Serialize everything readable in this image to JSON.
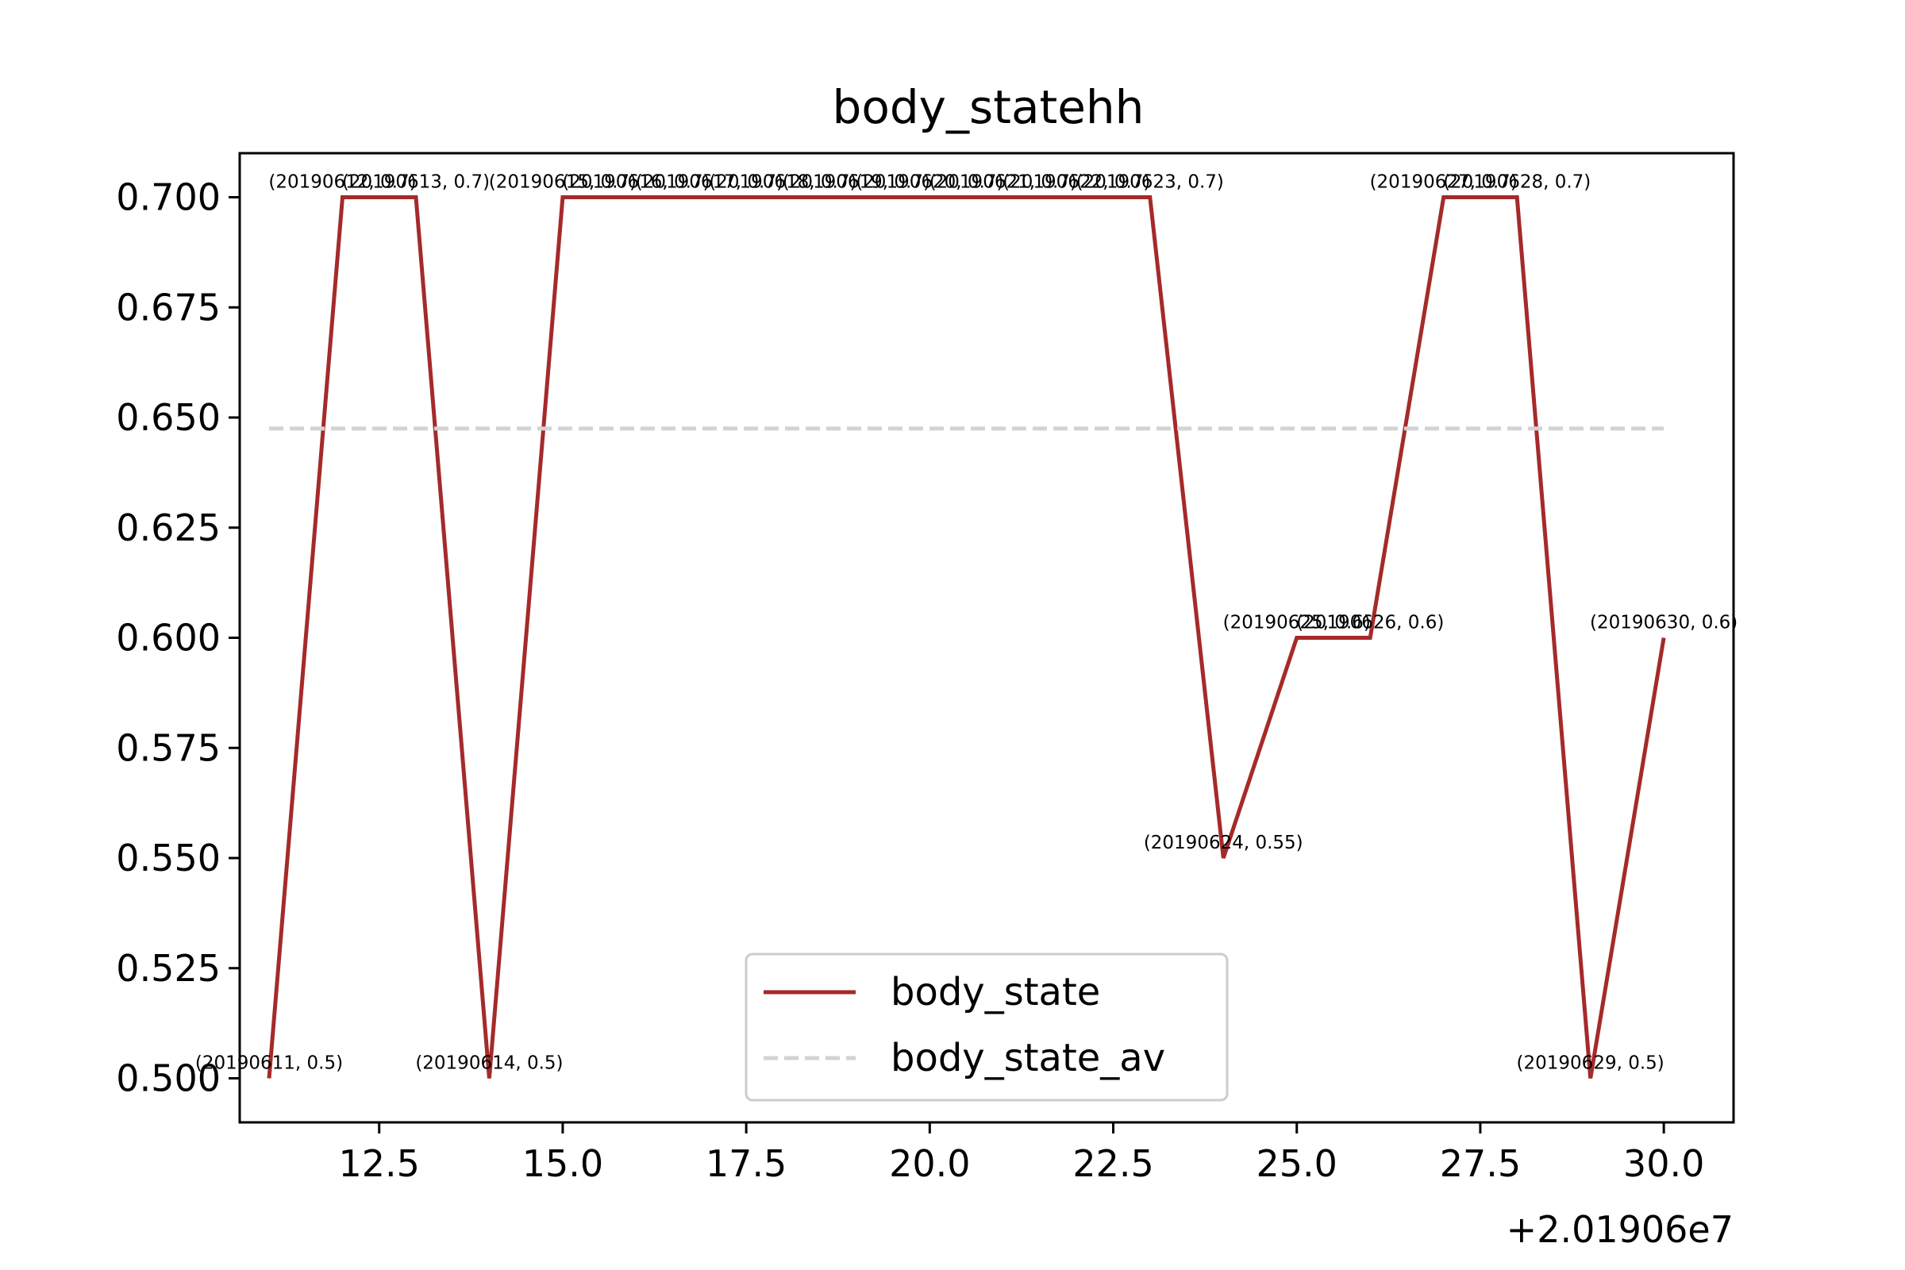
{
  "chart_data": {
    "type": "line",
    "title": "body_statehh",
    "xlabel": "",
    "ylabel": "",
    "x_offset_label": "+2.01906e7",
    "xlim": [
      10.6,
      30.95
    ],
    "ylim": [
      0.49,
      0.71
    ],
    "x_ticks": [
      12.5,
      15.0,
      17.5,
      20.0,
      22.5,
      25.0,
      27.5,
      30.0
    ],
    "x_tick_labels": [
      "12.5",
      "15.0",
      "17.5",
      "20.0",
      "22.5",
      "25.0",
      "27.5",
      "30.0"
    ],
    "y_ticks": [
      0.5,
      0.525,
      0.55,
      0.575,
      0.6,
      0.625,
      0.65,
      0.675,
      0.7
    ],
    "y_tick_labels": [
      "0.500",
      "0.525",
      "0.550",
      "0.575",
      "0.600",
      "0.625",
      "0.650",
      "0.675",
      "0.700"
    ],
    "grid": false,
    "legend_position": "lower-center",
    "series": [
      {
        "name": "body_state",
        "color": "#a52a2a",
        "style": "solid",
        "x": [
          11,
          12,
          13,
          14,
          15,
          16,
          17,
          18,
          19,
          20,
          21,
          22,
          23,
          24,
          25,
          26,
          27,
          28,
          29,
          30
        ],
        "values": [
          0.5,
          0.7,
          0.7,
          0.5,
          0.7,
          0.7,
          0.7,
          0.7,
          0.7,
          0.7,
          0.7,
          0.7,
          0.7,
          0.55,
          0.6,
          0.6,
          0.7,
          0.7,
          0.5,
          0.6
        ],
        "point_labels": [
          "(20190611, 0.5)",
          "(20190612, 0.7)",
          "(20190613, 0.7)",
          "(20190614, 0.5)",
          "(20190615, 0.7)",
          "(20190616, 0.7)",
          "(20190617, 0.7)",
          "(20190618, 0.7)",
          "(20190619, 0.7)",
          "(20190620, 0.7)",
          "(20190621, 0.7)",
          "(20190622, 0.7)",
          "(20190623, 0.7)",
          "(20190624, 0.55)",
          "(20190625, 0.6)",
          "(20190626, 0.6)",
          "(20190627, 0.7)",
          "(20190628, 0.7)",
          "(20190629, 0.5)",
          "(20190630, 0.6)"
        ]
      },
      {
        "name": "body_state_av",
        "color": "#d3d3d3",
        "style": "dashed",
        "x": [
          11,
          30
        ],
        "values": [
          0.6475,
          0.6475
        ]
      }
    ]
  }
}
